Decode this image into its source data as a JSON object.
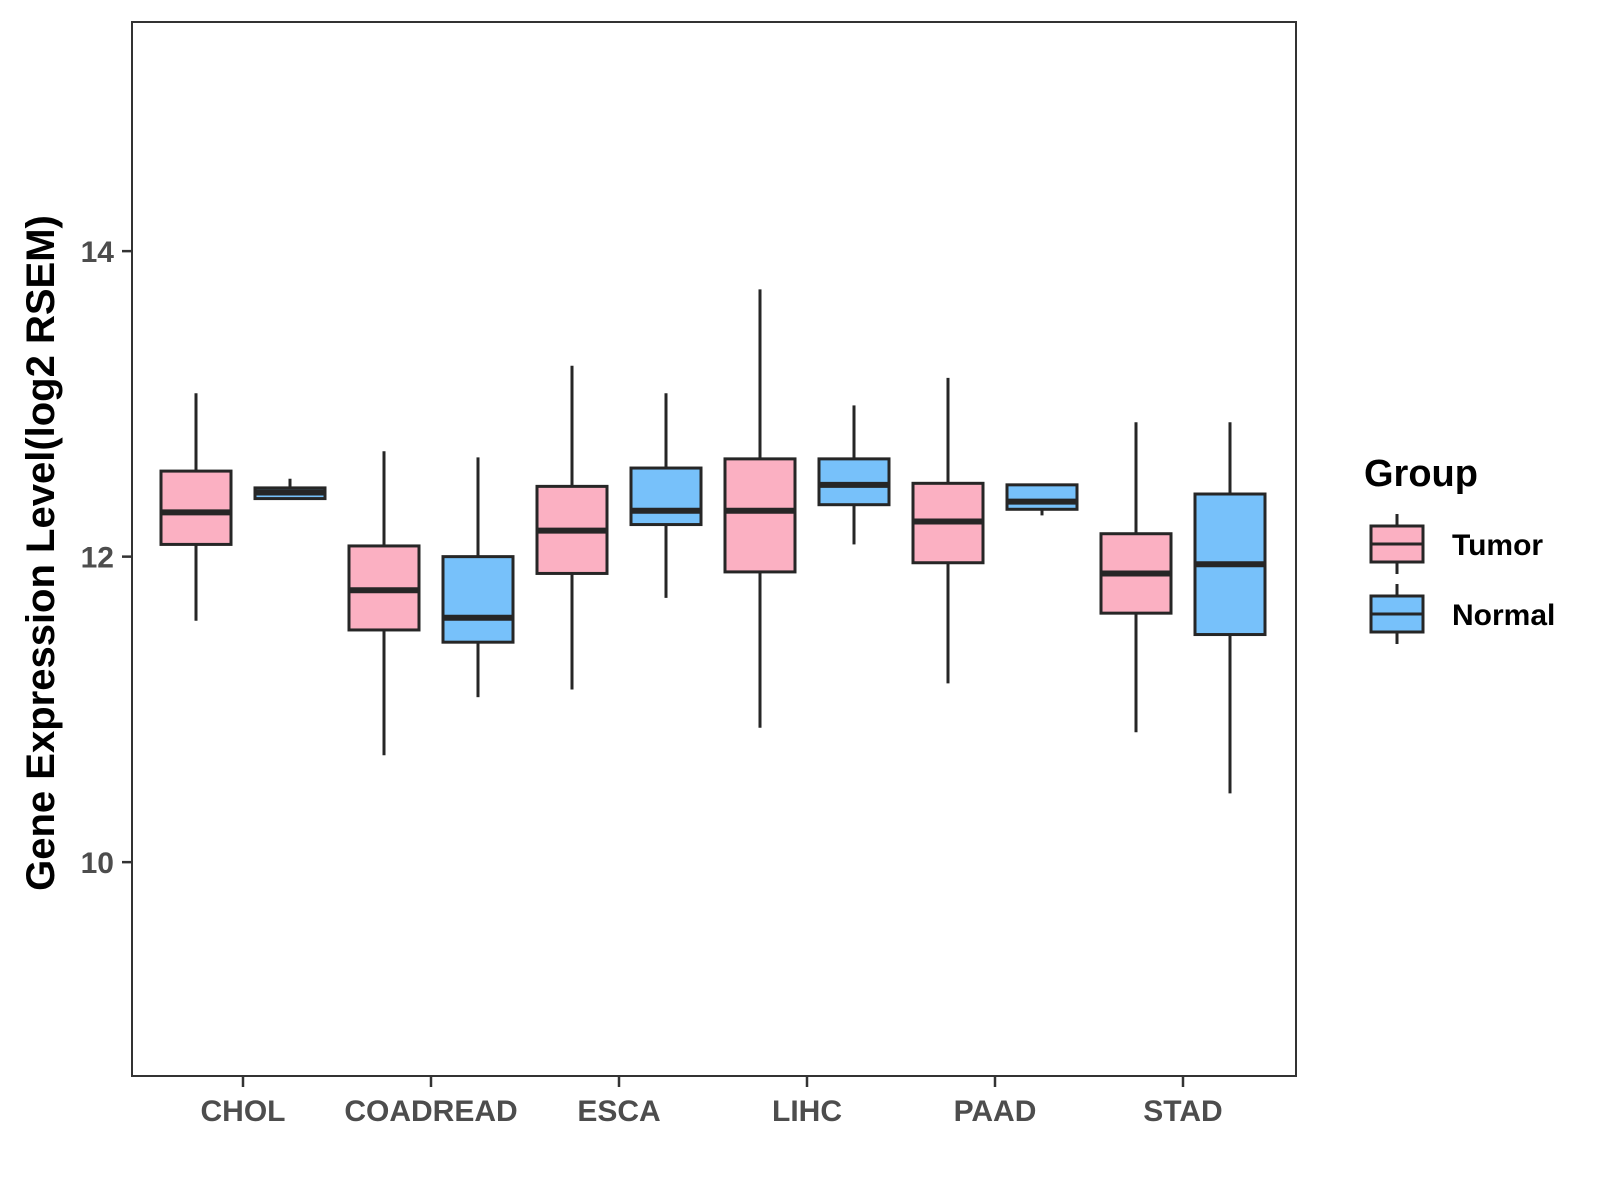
{
  "chart_data": {
    "type": "boxplot",
    "title": "",
    "xlabel": "",
    "ylabel": "Gene Expression Level(log2 RSEM)",
    "ylim": [
      8.6,
      15.5
    ],
    "yticks": [
      10,
      12,
      14
    ],
    "grid": false,
    "legend_position": "right",
    "legend_title": "Group",
    "categories": [
      "CHOL",
      "COADREAD",
      "ESCA",
      "LIHC",
      "PAAD",
      "STAD"
    ],
    "series": [
      {
        "name": "Tumor",
        "color": "#FBB0C2",
        "boxes": [
          {
            "category": "CHOL",
            "whisker_low": 11.58,
            "q1": 12.08,
            "median": 12.29,
            "q3": 12.56,
            "whisker_high": 13.07
          },
          {
            "category": "COADREAD",
            "whisker_low": 10.7,
            "q1": 11.52,
            "median": 11.78,
            "q3": 12.07,
            "whisker_high": 12.69
          },
          {
            "category": "ESCA",
            "whisker_low": 11.13,
            "q1": 11.89,
            "median": 12.17,
            "q3": 12.46,
            "whisker_high": 13.25
          },
          {
            "category": "LIHC",
            "whisker_low": 10.88,
            "q1": 11.9,
            "median": 12.3,
            "q3": 12.64,
            "whisker_high": 13.75
          },
          {
            "category": "PAAD",
            "whisker_low": 11.17,
            "q1": 11.96,
            "median": 12.23,
            "q3": 12.48,
            "whisker_high": 13.17
          },
          {
            "category": "STAD",
            "whisker_low": 10.85,
            "q1": 11.63,
            "median": 11.89,
            "q3": 12.15,
            "whisker_high": 12.88
          }
        ]
      },
      {
        "name": "Normal",
        "color": "#77C1FA",
        "boxes": [
          {
            "category": "CHOL",
            "whisker_low": 12.38,
            "q1": 12.38,
            "median": 12.42,
            "q3": 12.45,
            "whisker_high": 12.51
          },
          {
            "category": "COADREAD",
            "whisker_low": 11.08,
            "q1": 11.44,
            "median": 11.6,
            "q3": 12.0,
            "whisker_high": 12.65
          },
          {
            "category": "ESCA",
            "whisker_low": 11.73,
            "q1": 12.21,
            "median": 12.3,
            "q3": 12.58,
            "whisker_high": 13.07
          },
          {
            "category": "LIHC",
            "whisker_low": 12.08,
            "q1": 12.34,
            "median": 12.47,
            "q3": 12.64,
            "whisker_high": 12.99
          },
          {
            "category": "PAAD",
            "whisker_low": 12.27,
            "q1": 12.31,
            "median": 12.36,
            "q3": 12.47,
            "whisker_high": 12.47
          },
          {
            "category": "STAD",
            "whisker_low": 10.45,
            "q1": 11.49,
            "median": 11.95,
            "q3": 12.41,
            "whisker_high": 12.88
          }
        ]
      }
    ]
  }
}
